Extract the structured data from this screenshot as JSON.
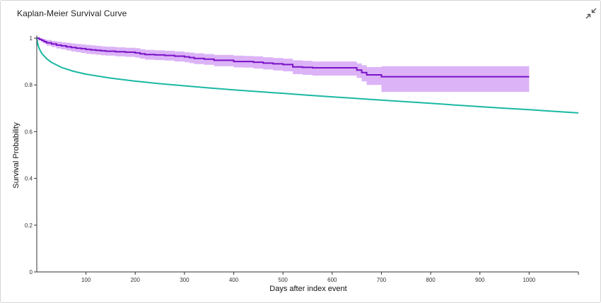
{
  "window": {
    "title": "Kaplan-Meier Survival Curve",
    "collapse_icon": "collapse-arrows-icon"
  },
  "chart_data": {
    "type": "line",
    "title": "Kaplan-Meier Survival Curve",
    "xlabel": "Days after index event",
    "ylabel": "Survival Probability",
    "xlim": [
      0,
      1100
    ],
    "ylim": [
      0,
      1
    ],
    "x_ticks": [
      100,
      200,
      300,
      400,
      500,
      600,
      700,
      800,
      900,
      1000
    ],
    "y_ticks": [
      0,
      0.2,
      0.4,
      0.6,
      0.8,
      1
    ],
    "y_tick_labels": [
      "0",
      "0.2",
      "0.4",
      "0.6",
      "0.8",
      "1"
    ],
    "grid": false,
    "colors": {
      "km": "#7a12c8",
      "ci": "#dcb3f7",
      "reference": "#1ab8a3",
      "axis": "#333333"
    },
    "series": [
      {
        "style": "step",
        "color": "#7a12c8",
        "x": [
          0,
          5,
          10,
          15,
          20,
          30,
          40,
          50,
          60,
          70,
          80,
          90,
          100,
          110,
          120,
          130,
          140,
          160,
          180,
          200,
          210,
          220,
          240,
          260,
          280,
          300,
          310,
          320,
          340,
          360,
          400,
          420,
          440,
          460,
          480,
          500,
          520,
          540,
          560,
          600,
          640,
          650,
          660,
          670,
          700,
          1000
        ],
        "y": [
          1.0,
          0.995,
          0.99,
          0.985,
          0.98,
          0.975,
          0.97,
          0.967,
          0.963,
          0.96,
          0.957,
          0.955,
          0.952,
          0.95,
          0.948,
          0.946,
          0.944,
          0.942,
          0.94,
          0.937,
          0.933,
          0.93,
          0.928,
          0.926,
          0.923,
          0.92,
          0.917,
          0.913,
          0.91,
          0.905,
          0.9,
          0.9,
          0.897,
          0.893,
          0.89,
          0.887,
          0.877,
          0.875,
          0.873,
          0.873,
          0.873,
          0.863,
          0.853,
          0.843,
          0.835,
          0.835
        ],
        "ci_upper": [
          1.0,
          1.0,
          0.998,
          0.995,
          0.992,
          0.988,
          0.985,
          0.982,
          0.98,
          0.977,
          0.975,
          0.973,
          0.971,
          0.969,
          0.967,
          0.965,
          0.963,
          0.961,
          0.959,
          0.957,
          0.953,
          0.95,
          0.948,
          0.946,
          0.943,
          0.94,
          0.938,
          0.935,
          0.932,
          0.928,
          0.925,
          0.924,
          0.922,
          0.918,
          0.915,
          0.912,
          0.905,
          0.903,
          0.9,
          0.9,
          0.9,
          0.892,
          0.884,
          0.876,
          0.88,
          0.88
        ],
        "ci_lower": [
          1.0,
          0.99,
          0.982,
          0.975,
          0.968,
          0.962,
          0.956,
          0.952,
          0.947,
          0.943,
          0.94,
          0.937,
          0.933,
          0.931,
          0.929,
          0.927,
          0.925,
          0.922,
          0.92,
          0.917,
          0.912,
          0.908,
          0.906,
          0.904,
          0.9,
          0.897,
          0.893,
          0.889,
          0.886,
          0.88,
          0.875,
          0.874,
          0.87,
          0.866,
          0.862,
          0.858,
          0.846,
          0.843,
          0.84,
          0.84,
          0.84,
          0.83,
          0.815,
          0.8,
          0.77,
          0.77
        ]
      },
      {
        "style": "smooth",
        "color": "#1ab8a3",
        "x": [
          0,
          2,
          5,
          10,
          20,
          30,
          50,
          75,
          100,
          150,
          200,
          250,
          300,
          350,
          400,
          450,
          500,
          550,
          600,
          650,
          700,
          750,
          800,
          850,
          900,
          950,
          1000,
          1050,
          1100
        ],
        "y": [
          1.0,
          0.975,
          0.955,
          0.935,
          0.912,
          0.896,
          0.875,
          0.858,
          0.846,
          0.829,
          0.816,
          0.805,
          0.796,
          0.787,
          0.779,
          0.771,
          0.764,
          0.756,
          0.749,
          0.742,
          0.735,
          0.728,
          0.721,
          0.714,
          0.707,
          0.7,
          0.694,
          0.687,
          0.68
        ]
      }
    ]
  }
}
